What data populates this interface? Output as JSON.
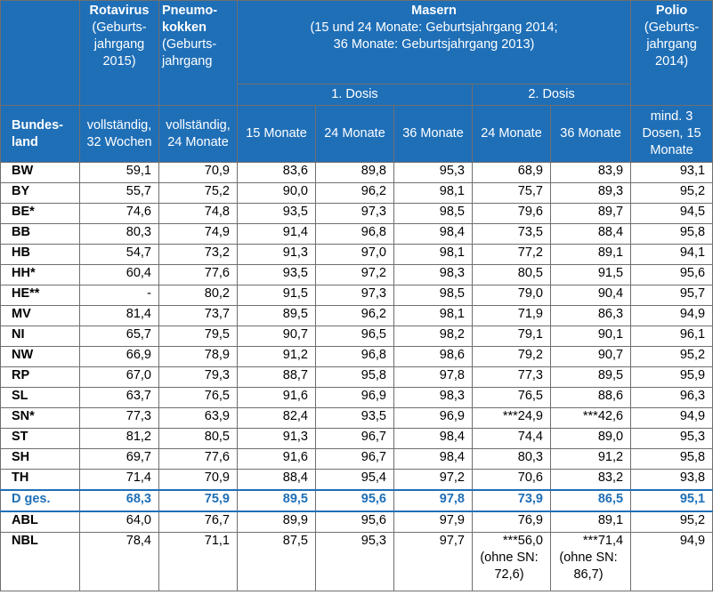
{
  "header": {
    "rota_title": "Rotavirus",
    "rota_sub": "(Geburts-jahrgang 2015)",
    "pneumo_title": "Pneumo-kokken",
    "pneumo_sub": "(Geburts-jahrgang",
    "masern_title": "Masern",
    "masern_sub1": "(15 und 24 Monate: Geburtsjahrgang 2014;",
    "masern_sub2": "36 Monate: Geburtsjahrgang 2013)",
    "polio_title": "Polio",
    "polio_sub": "(Geburts-jahrgang 2014)",
    "dosis1": "1. Dosis",
    "dosis2": "2. Dosis",
    "land": "Bundes-land",
    "c1": "vollständig, 32 Wochen",
    "c2": "vollständig, 24 Monate",
    "c3": "15 Monate",
    "c4": "24 Monate",
    "c5": "36 Monate",
    "c6": "24 Monate",
    "c7": "36 Monate",
    "c8": "mind. 3 Dosen, 15 Monate"
  },
  "rows": [
    {
      "land": "BW",
      "v": [
        "59,1",
        "70,9",
        "83,6",
        "89,8",
        "95,3",
        "68,9",
        "83,9",
        "93,1"
      ]
    },
    {
      "land": "BY",
      "v": [
        "55,7",
        "75,2",
        "90,0",
        "96,2",
        "98,1",
        "75,7",
        "89,3",
        "95,2"
      ]
    },
    {
      "land": "BE*",
      "v": [
        "74,6",
        "74,8",
        "93,5",
        "97,3",
        "98,5",
        "79,6",
        "89,7",
        "94,5"
      ]
    },
    {
      "land": "BB",
      "v": [
        "80,3",
        "74,9",
        "91,4",
        "96,8",
        "98,4",
        "73,5",
        "88,4",
        "95,8"
      ]
    },
    {
      "land": "HB",
      "v": [
        "54,7",
        "73,2",
        "91,3",
        "97,0",
        "98,1",
        "77,2",
        "89,1",
        "94,1"
      ]
    },
    {
      "land": "HH*",
      "v": [
        "60,4",
        "77,6",
        "93,5",
        "97,2",
        "98,3",
        "80,5",
        "91,5",
        "95,6"
      ]
    },
    {
      "land": "HE**",
      "v": [
        "-",
        "80,2",
        "91,5",
        "97,3",
        "98,5",
        "79,0",
        "90,4",
        "95,7"
      ]
    },
    {
      "land": "MV",
      "v": [
        "81,4",
        "73,7",
        "89,5",
        "96,2",
        "98,1",
        "71,9",
        "86,3",
        "94,9"
      ]
    },
    {
      "land": "NI",
      "v": [
        "65,7",
        "79,5",
        "90,7",
        "96,5",
        "98,2",
        "79,1",
        "90,1",
        "96,1"
      ]
    },
    {
      "land": "NW",
      "v": [
        "66,9",
        "78,9",
        "91,2",
        "96,8",
        "98,6",
        "79,2",
        "90,7",
        "95,2"
      ]
    },
    {
      "land": "RP",
      "v": [
        "67,0",
        "79,3",
        "88,7",
        "95,8",
        "97,8",
        "77,3",
        "89,5",
        "95,9"
      ]
    },
    {
      "land": "SL",
      "v": [
        "63,7",
        "76,5",
        "91,6",
        "96,9",
        "98,3",
        "76,5",
        "88,6",
        "96,3"
      ]
    },
    {
      "land": "SN*",
      "v": [
        "77,3",
        "63,9",
        "82,4",
        "93,5",
        "96,9",
        "***24,9",
        "***42,6",
        "94,9"
      ]
    },
    {
      "land": "ST",
      "v": [
        "81,2",
        "80,5",
        "91,3",
        "96,7",
        "98,4",
        "74,4",
        "89,0",
        "95,3"
      ]
    },
    {
      "land": "SH",
      "v": [
        "69,7",
        "77,6",
        "91,6",
        "96,7",
        "98,4",
        "80,3",
        "91,2",
        "95,8"
      ]
    },
    {
      "land": "TH",
      "v": [
        "71,4",
        "70,9",
        "88,4",
        "95,4",
        "97,2",
        "70,6",
        "83,2",
        "93,8"
      ]
    }
  ],
  "total": {
    "land": "D ges.",
    "v": [
      "68,3",
      "75,9",
      "89,5",
      "95,6",
      "97,8",
      "73,9",
      "86,5",
      "95,1"
    ]
  },
  "abl": {
    "land": "ABL",
    "v": [
      "64,0",
      "76,7",
      "89,9",
      "95,6",
      "97,9",
      "76,9",
      "89,1",
      "95,2"
    ]
  },
  "nbl": {
    "land": "NBL",
    "v": [
      "78,4",
      "71,1",
      "87,5",
      "95,3",
      "97,7",
      "***56,0",
      "***71,4",
      "94,9"
    ],
    "note6": "(ohne SN: 72,6)",
    "note7": "(ohne SN: 86,7)"
  }
}
